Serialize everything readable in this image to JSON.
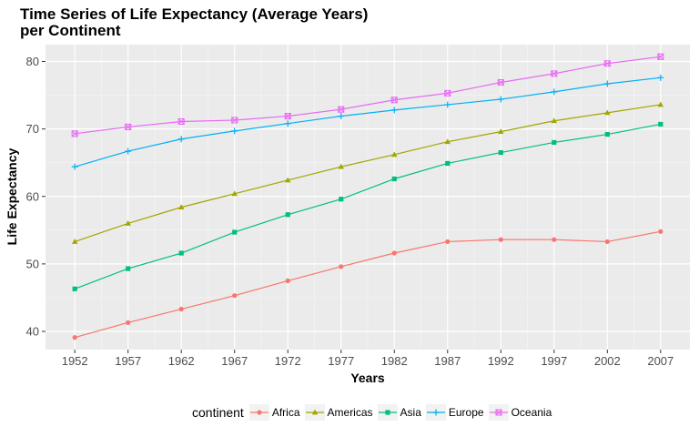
{
  "chart_data": {
    "type": "line",
    "title": "Time Series of Life Expectancy (Average Years)\n per Continent",
    "xlabel": "Years",
    "ylabel": "Life Expectancy",
    "x": [
      1952,
      1957,
      1962,
      1967,
      1972,
      1977,
      1982,
      1987,
      1992,
      1997,
      2002,
      2007
    ],
    "xlim": [
      1949.25,
      2009.75
    ],
    "ylim": [
      37.3,
      82.5
    ],
    "yticks": [
      40,
      50,
      60,
      70,
      80
    ],
    "grid": true,
    "legend_title": "continent",
    "legend_position": "bottom",
    "series": [
      {
        "name": "Africa",
        "color": "#F8766D",
        "marker": "circle",
        "values": [
          39.1,
          41.3,
          43.3,
          45.3,
          47.5,
          49.6,
          51.6,
          53.3,
          53.6,
          53.6,
          53.3,
          54.8
        ]
      },
      {
        "name": "Americas",
        "color": "#A3A500",
        "marker": "triangle",
        "values": [
          53.3,
          56.0,
          58.4,
          60.4,
          62.4,
          64.4,
          66.2,
          68.1,
          69.6,
          71.2,
          72.4,
          73.6
        ]
      },
      {
        "name": "Asia",
        "color": "#00BF7D",
        "marker": "square",
        "values": [
          46.3,
          49.3,
          51.6,
          54.7,
          57.3,
          59.6,
          62.6,
          64.9,
          66.5,
          68.0,
          69.2,
          70.7
        ]
      },
      {
        "name": "Europe",
        "color": "#00B0F6",
        "marker": "plus",
        "values": [
          64.4,
          66.7,
          68.5,
          69.7,
          70.8,
          71.9,
          72.8,
          73.6,
          74.4,
          75.5,
          76.7,
          77.6
        ]
      },
      {
        "name": "Oceania",
        "color": "#E76BF3",
        "marker": "square-cross",
        "values": [
          69.3,
          70.3,
          71.1,
          71.3,
          71.9,
          72.9,
          74.3,
          75.3,
          76.9,
          78.2,
          79.7,
          80.7
        ]
      }
    ]
  }
}
